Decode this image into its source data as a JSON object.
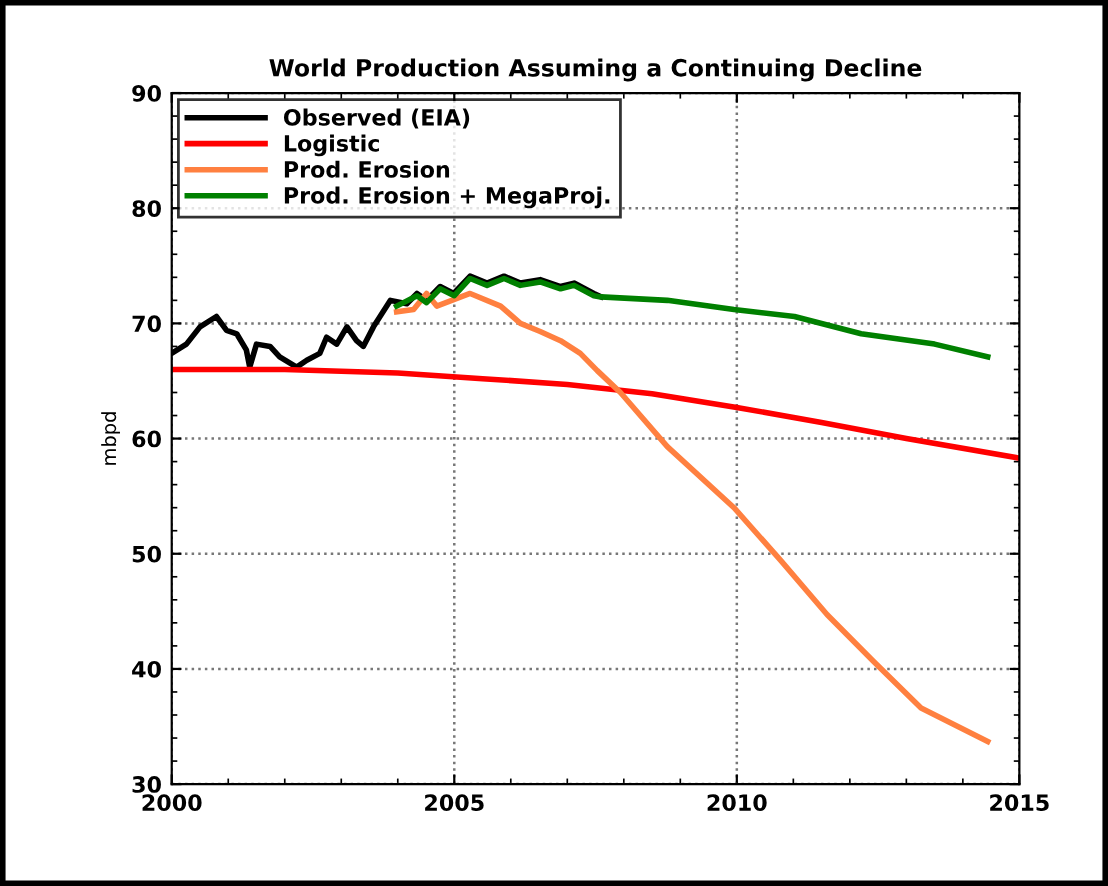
{
  "chart_data": {
    "type": "line",
    "title": "World Production Assuming a Continuing Decline",
    "ylabel": "mbpd",
    "xlim": [
      2000,
      2015
    ],
    "xticks": [
      2000,
      2005,
      2010,
      2015
    ],
    "ylim": [
      30,
      90
    ],
    "yticks": [
      30,
      40,
      50,
      60,
      70,
      80,
      90
    ],
    "grid": true,
    "legend": "top left",
    "line_style": "solid",
    "marker": "none",
    "series": [
      {
        "name": "Observed (EIA)",
        "color": "#000000",
        "x": [
          2000.0,
          2000.26,
          2000.5,
          2000.79,
          2000.97,
          2001.15,
          2001.32,
          2001.38,
          2001.5,
          2001.74,
          2001.91,
          2002.21,
          2002.39,
          2002.62,
          2002.74,
          2002.92,
          2003.1,
          2003.27,
          2003.39,
          2003.57,
          2003.87,
          2004.16,
          2004.34,
          2004.51,
          2004.75,
          2004.99,
          2005.28,
          2005.58,
          2005.88,
          2006.17,
          2006.52,
          2006.88,
          2007.12,
          2007.47,
          2007.6
        ],
        "values": [
          67.4,
          68.2,
          69.7,
          70.6,
          69.4,
          69.1,
          67.7,
          66.2,
          68.2,
          68.0,
          67.1,
          66.2,
          66.8,
          67.4,
          68.8,
          68.2,
          69.7,
          68.5,
          68.0,
          69.7,
          72.0,
          71.7,
          72.6,
          72.0,
          73.2,
          72.6,
          74.1,
          73.5,
          74.1,
          73.5,
          73.8,
          73.2,
          73.5,
          72.6,
          72.3
        ]
      },
      {
        "name": "Logistic",
        "color": "#ff0000",
        "x": [
          2000,
          2002,
          2004,
          2005.5,
          2007,
          2008.5,
          2010,
          2011.5,
          2013,
          2015
        ],
        "values": [
          66.0,
          66.0,
          65.7,
          65.2,
          64.7,
          63.9,
          62.7,
          61.4,
          60.0,
          58.3
        ]
      },
      {
        "name": "Prod. Erosion",
        "color": "#ff8040",
        "x": [
          2003.98,
          2004.28,
          2004.51,
          2004.69,
          2005.28,
          2005.82,
          2006.17,
          2006.52,
          2006.88,
          2007.23,
          2007.53,
          2007.94,
          2008.77,
          2009.95,
          2010.78,
          2011.6,
          2012.43,
          2013.26,
          2014.44
        ],
        "values": [
          71.0,
          71.2,
          72.6,
          71.5,
          72.6,
          71.5,
          70.0,
          69.3,
          68.5,
          67.4,
          65.9,
          64.0,
          59.3,
          54.0,
          49.4,
          44.7,
          40.6,
          36.6,
          33.7
        ]
      },
      {
        "name": "Prod. Erosion + MegaProj.",
        "color": "#008000",
        "x": [
          2003.98,
          2004.34,
          2004.51,
          2004.75,
          2005.0,
          2005.28,
          2005.58,
          2005.88,
          2006.17,
          2006.52,
          2006.88,
          2007.12,
          2007.47,
          2007.59,
          2008.77,
          2009.95,
          2011.02,
          2012.2,
          2013.5,
          2014.44
        ],
        "values": [
          71.5,
          72.4,
          71.8,
          73.0,
          72.4,
          73.9,
          73.3,
          73.9,
          73.3,
          73.6,
          73.0,
          73.3,
          72.4,
          72.3,
          72.0,
          71.2,
          70.6,
          69.1,
          68.2,
          67.1
        ]
      }
    ]
  }
}
